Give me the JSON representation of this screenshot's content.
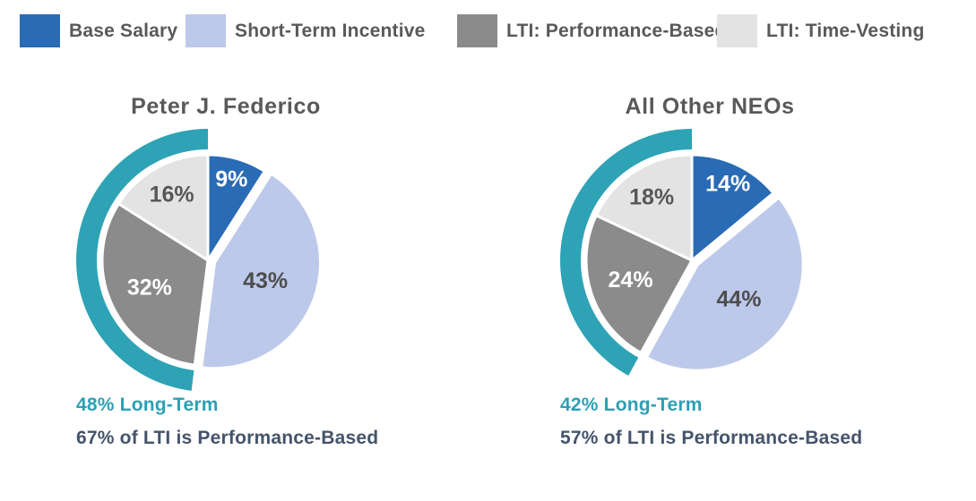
{
  "palette": {
    "slice_colors": [
      "#2A6BB5",
      "#BDC9EA",
      "#8B8B8B",
      "#E3E3E3"
    ],
    "slice_label_colors": [
      "#FFFFFF",
      "#4D4D4D",
      "#FFFFFF",
      "#575757"
    ],
    "long_term_arc_color": "#2EA3B6",
    "title_color": "#595959",
    "callout_teal_color": "#2D9FB4",
    "callout_navy_color": "#44546A"
  },
  "legend": {
    "items": [
      {
        "label": "Base Salary"
      },
      {
        "label": "Short-Term Incentive"
      },
      {
        "label": "LTI: Performance-Based"
      },
      {
        "label": "LTI: Time-Vesting"
      }
    ]
  },
  "chart_data": [
    {
      "type": "pie",
      "title": "Peter J. Federico",
      "categories": [
        "Base Salary",
        "Short-Term Incentive",
        "LTI: Performance-Based",
        "LTI: Time-Vesting"
      ],
      "values": [
        9,
        43,
        32,
        16
      ],
      "data_labels": [
        "9%",
        "43%",
        "32%",
        "16%"
      ],
      "start_angle_deg": 0,
      "direction": "clockwise",
      "exploded_slice": "Short-Term Incentive",
      "long_term_arc_percent": 48,
      "footnote_long_term": "48% Long-Term",
      "footnote_lti": "67% of LTI is Performance-Based"
    },
    {
      "type": "pie",
      "title": "All Other NEOs",
      "categories": [
        "Base Salary",
        "Short-Term Incentive",
        "LTI: Performance-Based",
        "LTI: Time-Vesting"
      ],
      "values": [
        14,
        44,
        24,
        18
      ],
      "data_labels": [
        "14%",
        "44%",
        "24%",
        "18%"
      ],
      "start_angle_deg": 0,
      "direction": "clockwise",
      "exploded_slice": "Short-Term Incentive",
      "long_term_arc_percent": 42,
      "footnote_long_term": "42% Long-Term",
      "footnote_lti": "57% of LTI is Performance-Based"
    }
  ]
}
